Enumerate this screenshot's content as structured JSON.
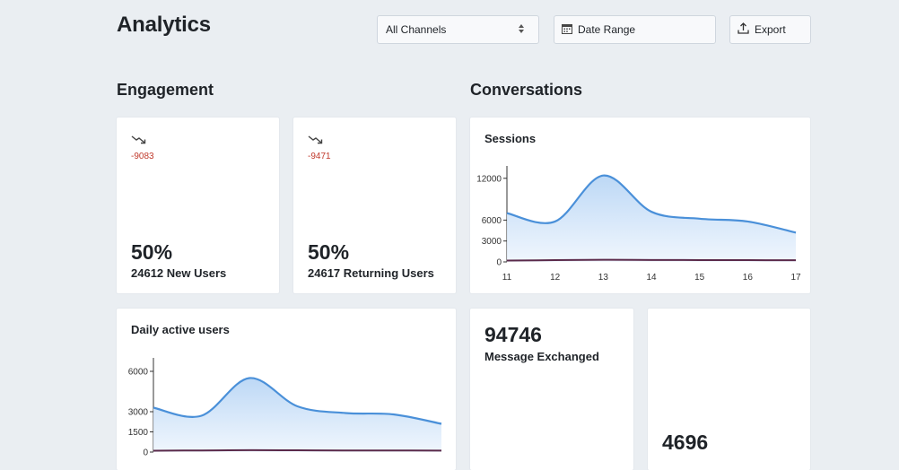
{
  "header": {
    "title": "Analytics",
    "channel_select": "All Channels",
    "date_range": "Date Range",
    "export": "Export"
  },
  "engagement": {
    "title": "Engagement",
    "new_users": {
      "delta": "-9083",
      "percent": "50%",
      "label": "24612 New Users"
    },
    "returning_users": {
      "delta": "-9471",
      "percent": "50%",
      "label": "24617 Returning Users"
    },
    "daily_active": {
      "title": "Daily active users"
    }
  },
  "conversations": {
    "title": "Conversations",
    "sessions": {
      "title": "Sessions"
    },
    "messages": {
      "value": "94746",
      "label": "Message Exchanged"
    },
    "other": {
      "value": "4696"
    }
  },
  "colors": {
    "line": "#4a90d9",
    "baseline": "#5b2a4a",
    "delta": "#c0392b"
  },
  "chart_data": [
    {
      "type": "area",
      "title": "Sessions",
      "x": [
        "11",
        "12",
        "13",
        "14",
        "15",
        "16",
        "17"
      ],
      "yticks": [
        0,
        3000,
        6000,
        12000
      ],
      "ylim": [
        0,
        13000
      ],
      "series": [
        {
          "values": [
            7000,
            5800,
            12400,
            7200,
            6200,
            5800,
            4200
          ]
        },
        {
          "values": [
            200,
            250,
            300,
            280,
            260,
            250,
            240
          ]
        }
      ]
    },
    {
      "type": "area",
      "title": "Daily active users",
      "yticks": [
        0,
        1500,
        3000,
        6000
      ],
      "ylim": [
        0,
        6600
      ],
      "series": [
        {
          "values": [
            3300,
            2700,
            5500,
            3400,
            2900,
            2800,
            2100
          ]
        },
        {
          "values": [
            100,
            120,
            140,
            130,
            120,
            120,
            110
          ]
        }
      ]
    }
  ]
}
